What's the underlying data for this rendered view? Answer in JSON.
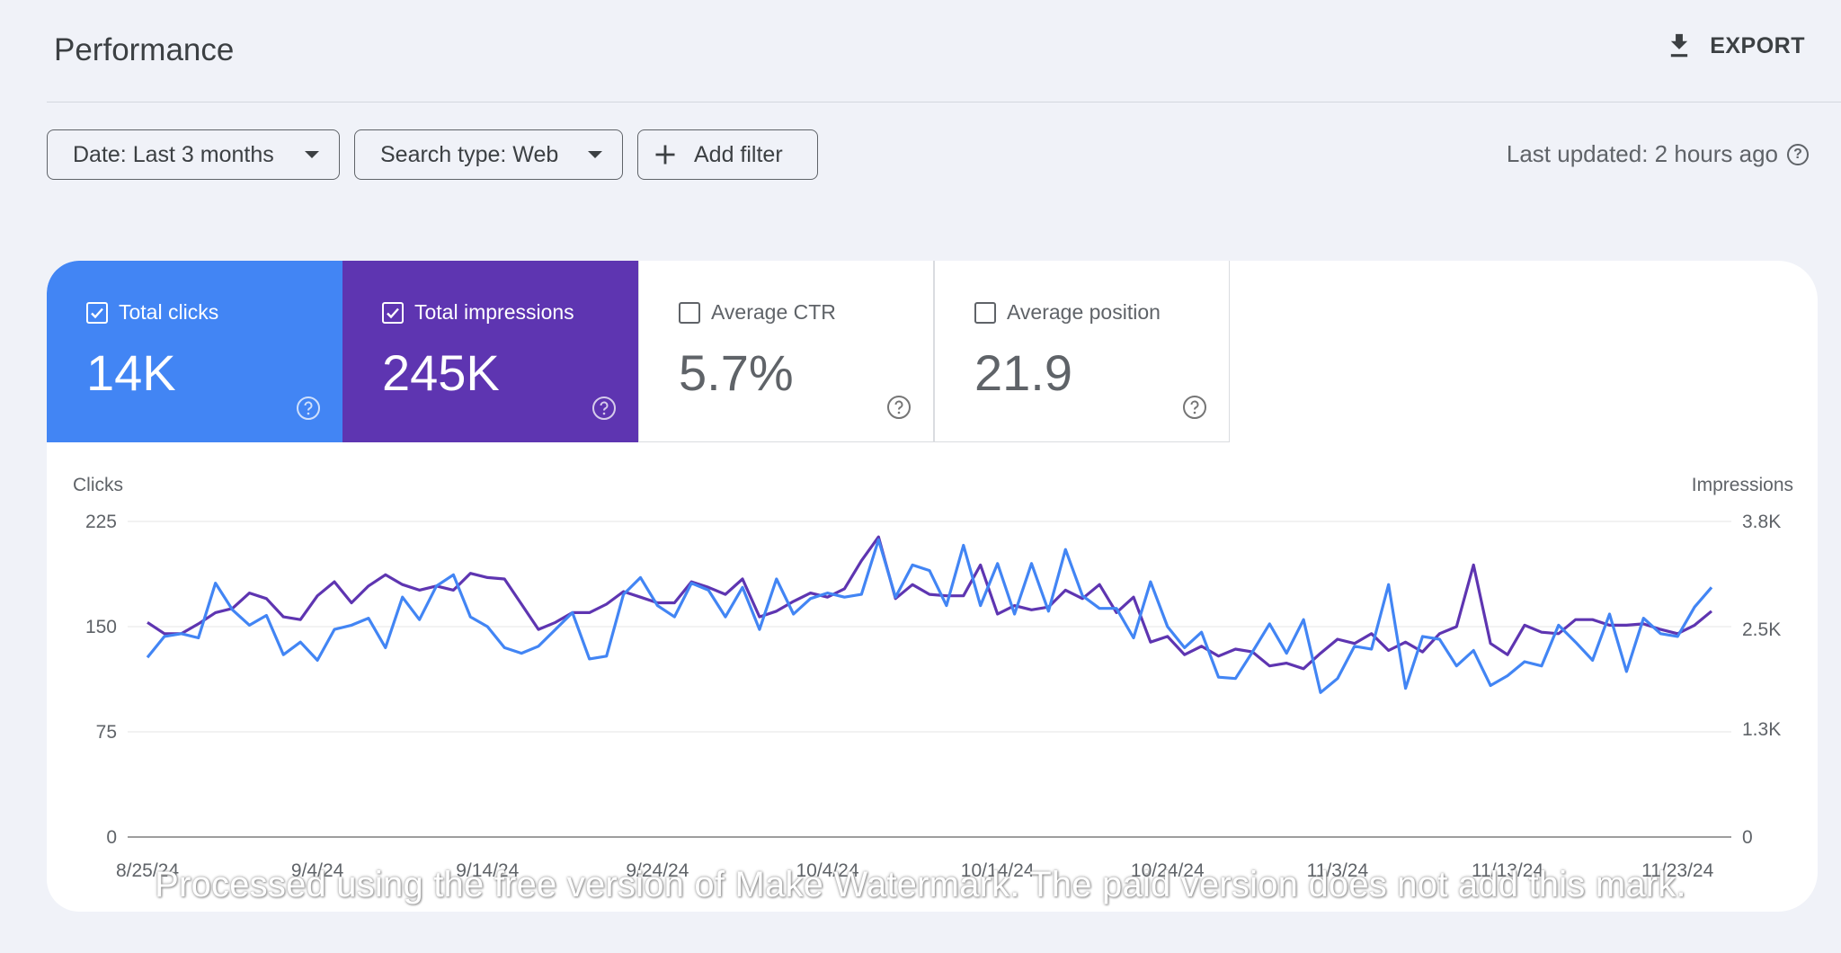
{
  "header": {
    "title": "Performance",
    "export_label": "EXPORT"
  },
  "filters": {
    "date_label": "Date: Last 3 months",
    "search_type_label": "Search type: Web",
    "add_filter_label": "Add filter"
  },
  "status": {
    "last_updated": "Last updated: 2 hours ago"
  },
  "metrics": [
    {
      "label": "Total clicks",
      "value": "14K",
      "checked": true,
      "color": "#4285f4"
    },
    {
      "label": "Total impressions",
      "value": "245K",
      "checked": true,
      "color": "#5e35b1"
    },
    {
      "label": "Average CTR",
      "value": "5.7%",
      "checked": false
    },
    {
      "label": "Average position",
      "value": "21.9",
      "checked": false
    }
  ],
  "chart_data": {
    "type": "line",
    "left_axis_label": "Clicks",
    "right_axis_label": "Impressions",
    "left_ticks": [
      "225",
      "150",
      "75",
      "0"
    ],
    "left_tick_values": [
      225,
      150,
      75,
      0
    ],
    "right_ticks": [
      "3.8K",
      "2.5K",
      "1.3K",
      "0"
    ],
    "right_tick_values": [
      3800,
      2500,
      1300,
      0
    ],
    "ylim_left": [
      0,
      225
    ],
    "ylim_right": [
      0,
      3800
    ],
    "x_tick_labels": [
      "8/25/24",
      "9/4/24",
      "9/14/24",
      "9/24/24",
      "10/4/24",
      "10/14/24",
      "10/24/24",
      "11/3/24",
      "11/13/24",
      "11/23/24"
    ],
    "x_start": "8/25/24",
    "x_end": "11/23/24",
    "grid": true,
    "series": [
      {
        "name": "Clicks",
        "axis": "left",
        "color": "#4285f4",
        "values": [
          128,
          143,
          145,
          142,
          181,
          162,
          151,
          158,
          130,
          139,
          126,
          148,
          151,
          156,
          135,
          171,
          155,
          179,
          187,
          157,
          150,
          135,
          131,
          136,
          148,
          160,
          127,
          129,
          173,
          185,
          165,
          157,
          181,
          176,
          157,
          178,
          148,
          184,
          159,
          170,
          174,
          171,
          173,
          212,
          171,
          194,
          190,
          165,
          208,
          165,
          195,
          159,
          195,
          161,
          205,
          172,
          163,
          163,
          142,
          182,
          150,
          135,
          146,
          114,
          113,
          132,
          152,
          131,
          155,
          103,
          113,
          136,
          134,
          180,
          106,
          143,
          141,
          122,
          133,
          108,
          115,
          125,
          122,
          151,
          139,
          126,
          159,
          118,
          156,
          145,
          143,
          164,
          178
        ]
      },
      {
        "name": "Impressions",
        "axis": "left",
        "color": "#5e35b1",
        "values": [
          153,
          145,
          145,
          152,
          160,
          163,
          174,
          170,
          157,
          155,
          172,
          182,
          167,
          179,
          187,
          180,
          176,
          179,
          176,
          188,
          185,
          184,
          166,
          148,
          153,
          160,
          160,
          166,
          175,
          171,
          167,
          167,
          182,
          178,
          173,
          184,
          157,
          161,
          168,
          174,
          171,
          177,
          197,
          214,
          170,
          180,
          173,
          172,
          172,
          194,
          159,
          165,
          162,
          164,
          176,
          170,
          180,
          160,
          171,
          139,
          143,
          130,
          136,
          129,
          134,
          132,
          122,
          124,
          120,
          131,
          141,
          138,
          145,
          133,
          139,
          132,
          145,
          150,
          194,
          138,
          130,
          151,
          146,
          145,
          155,
          155,
          151,
          151,
          152,
          148,
          145,
          151,
          161
        ]
      }
    ]
  },
  "watermark": "Processed using the free version of Make Watermark. The paid version does not add this mark."
}
